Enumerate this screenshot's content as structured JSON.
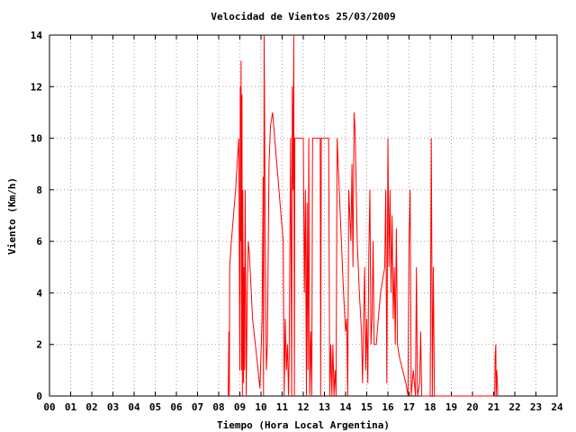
{
  "chart_data": {
    "type": "line",
    "title": "Velocidad de Vientos 25/03/2009",
    "xlabel": "Tiempo (Hora Local Argentina)",
    "ylabel": "Viento (Km/h)",
    "xlim": [
      0,
      24
    ],
    "ylim": [
      0,
      14
    ],
    "grid": true,
    "x_tick_labels": [
      "00",
      "01",
      "02",
      "03",
      "04",
      "05",
      "06",
      "07",
      "08",
      "09",
      "10",
      "11",
      "12",
      "13",
      "14",
      "15",
      "16",
      "17",
      "18",
      "19",
      "20",
      "21",
      "22",
      "23",
      "24"
    ],
    "y_tick_labels": [
      "0",
      "2",
      "4",
      "6",
      "8",
      "10",
      "12",
      "14"
    ],
    "series": [
      {
        "color": "#ff0000",
        "points": [
          [
            8.45,
            0
          ],
          [
            8.48,
            2.5
          ],
          [
            8.5,
            0
          ],
          [
            8.52,
            5
          ],
          [
            8.6,
            6
          ],
          [
            8.7,
            7
          ],
          [
            8.8,
            8
          ],
          [
            8.95,
            10
          ],
          [
            9.0,
            1
          ],
          [
            9.02,
            12
          ],
          [
            9.04,
            6
          ],
          [
            9.06,
            13
          ],
          [
            9.08,
            1
          ],
          [
            9.1,
            11.7
          ],
          [
            9.12,
            0
          ],
          [
            9.14,
            8
          ],
          [
            9.17,
            0.5
          ],
          [
            9.2,
            5
          ],
          [
            9.22,
            1
          ],
          [
            9.25,
            8
          ],
          [
            9.3,
            0
          ],
          [
            9.35,
            4
          ],
          [
            9.4,
            6
          ],
          [
            9.45,
            5.5
          ],
          [
            9.6,
            3
          ],
          [
            9.8,
            1.5
          ],
          [
            9.95,
            0.3
          ],
          [
            10.05,
            3
          ],
          [
            10.1,
            8.5
          ],
          [
            10.12,
            0
          ],
          [
            10.15,
            14
          ],
          [
            10.2,
            6
          ],
          [
            10.25,
            1
          ],
          [
            10.3,
            2
          ],
          [
            10.38,
            9
          ],
          [
            10.45,
            10.5
          ],
          [
            10.55,
            11
          ],
          [
            10.7,
            9.5
          ],
          [
            10.9,
            7.5
          ],
          [
            11.05,
            6
          ],
          [
            11.1,
            0
          ],
          [
            11.15,
            3
          ],
          [
            11.2,
            1
          ],
          [
            11.25,
            2
          ],
          [
            11.3,
            0
          ],
          [
            11.33,
            1.5
          ],
          [
            11.4,
            10
          ],
          [
            11.45,
            0
          ],
          [
            11.48,
            12
          ],
          [
            11.52,
            8
          ],
          [
            11.55,
            14
          ],
          [
            11.58,
            0
          ],
          [
            11.6,
            10
          ],
          [
            12.0,
            10
          ],
          [
            12.05,
            4
          ],
          [
            12.1,
            8
          ],
          [
            12.15,
            0
          ],
          [
            12.18,
            7.5
          ],
          [
            12.22,
            1
          ],
          [
            12.26,
            10
          ],
          [
            12.3,
            0
          ],
          [
            12.35,
            2.5
          ],
          [
            12.4,
            0
          ],
          [
            12.44,
            10
          ],
          [
            12.8,
            10
          ],
          [
            12.82,
            0
          ],
          [
            12.85,
            10
          ],
          [
            13.2,
            10
          ],
          [
            13.25,
            0
          ],
          [
            13.3,
            2
          ],
          [
            13.35,
            0
          ],
          [
            13.4,
            2
          ],
          [
            13.45,
            0
          ],
          [
            13.5,
            1
          ],
          [
            13.55,
            0
          ],
          [
            13.6,
            10
          ],
          [
            13.65,
            9
          ],
          [
            13.75,
            7
          ],
          [
            13.9,
            4
          ],
          [
            14.0,
            2.5
          ],
          [
            14.05,
            3
          ],
          [
            14.1,
            0
          ],
          [
            14.15,
            8
          ],
          [
            14.25,
            6
          ],
          [
            14.3,
            9
          ],
          [
            14.35,
            5
          ],
          [
            14.4,
            11
          ],
          [
            14.45,
            10.3
          ],
          [
            14.5,
            8
          ],
          [
            14.55,
            6
          ],
          [
            14.65,
            4
          ],
          [
            14.75,
            2.5
          ],
          [
            14.8,
            0.5
          ],
          [
            14.85,
            3
          ],
          [
            14.9,
            5
          ],
          [
            14.95,
            1
          ],
          [
            15.0,
            3
          ],
          [
            15.05,
            0.5
          ],
          [
            15.1,
            5.5
          ],
          [
            15.15,
            8
          ],
          [
            15.2,
            2
          ],
          [
            15.25,
            3
          ],
          [
            15.3,
            6
          ],
          [
            15.35,
            2
          ],
          [
            15.45,
            2
          ],
          [
            15.55,
            3
          ],
          [
            15.65,
            4
          ],
          [
            15.75,
            4.5
          ],
          [
            15.85,
            5
          ],
          [
            15.9,
            8
          ],
          [
            15.95,
            0.5
          ],
          [
            16.0,
            10
          ],
          [
            16.05,
            5
          ],
          [
            16.1,
            8
          ],
          [
            16.15,
            4
          ],
          [
            16.2,
            7
          ],
          [
            16.25,
            3
          ],
          [
            16.3,
            5
          ],
          [
            16.35,
            2
          ],
          [
            16.4,
            6.5
          ],
          [
            16.45,
            2
          ],
          [
            16.55,
            1.5
          ],
          [
            16.7,
            1
          ],
          [
            16.85,
            0.5
          ],
          [
            16.95,
            0
          ],
          [
            17.0,
            6
          ],
          [
            17.05,
            8
          ],
          [
            17.1,
            0
          ],
          [
            17.2,
            1
          ],
          [
            17.3,
            0
          ],
          [
            17.35,
            5
          ],
          [
            17.4,
            0
          ],
          [
            17.5,
            0.5
          ],
          [
            17.55,
            2.5
          ],
          [
            17.6,
            0
          ],
          [
            18.0,
            0
          ],
          [
            18.05,
            10
          ],
          [
            18.08,
            5
          ],
          [
            18.1,
            0
          ],
          [
            18.15,
            5
          ],
          [
            18.2,
            0
          ],
          [
            21.05,
            0
          ],
          [
            21.07,
            1.5
          ],
          [
            21.1,
            2
          ],
          [
            21.12,
            0
          ],
          [
            21.15,
            1
          ],
          [
            21.2,
            0
          ]
        ]
      }
    ]
  }
}
